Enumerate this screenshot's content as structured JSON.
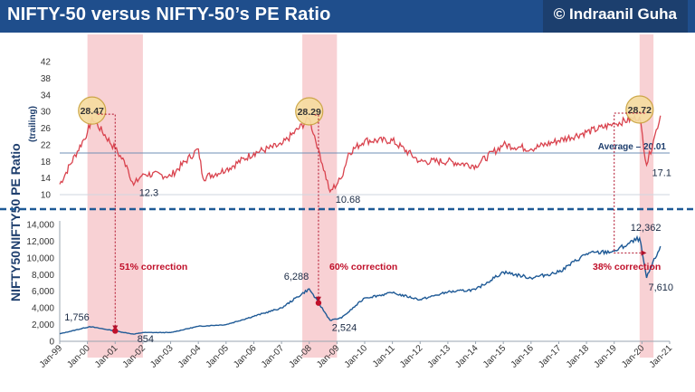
{
  "header": {
    "title": "NIFTY-50 versus NIFTY-50’s PE Ratio",
    "credit": "© Indraanil Guha"
  },
  "chart_data": [
    {
      "type": "line",
      "panel": "top",
      "title": "",
      "ylabel": "NIFTY50 PE Ratio",
      "ylabel_sub": "(trailing)",
      "ylim": [
        10,
        42
      ],
      "yticks": [
        "10",
        "14",
        "18",
        "22",
        "26",
        "30",
        "34",
        "38",
        "42"
      ],
      "xlim": [
        "Jan-99",
        "Jan-21"
      ],
      "series": [
        {
          "color": "#d9434e",
          "x": [
            "Jan-99",
            "Jan-00",
            "Mar-00",
            "Jan-01",
            "Jun-01",
            "Sep-01",
            "Jan-02",
            "Jan-03",
            "Jan-04",
            "Mar-04",
            "Jan-05",
            "Jan-06",
            "Jan-07",
            "Jan-08",
            "May-08",
            "Oct-08",
            "Mar-09",
            "Jun-09",
            "Jan-10",
            "Jan-11",
            "Jan-12",
            "Jan-13",
            "Jan-14",
            "Jan-15",
            "Jan-16",
            "Jan-17",
            "Jan-18",
            "Jan-19",
            "Dec-19",
            "Mar-20",
            "Jun-20",
            "Sep-20"
          ],
          "values": [
            12.5,
            25,
            28.47,
            21,
            17,
            12.3,
            15,
            14.5,
            21,
            14,
            16,
            20,
            22,
            28.29,
            21,
            10.68,
            14,
            20,
            23,
            23,
            18,
            18,
            17,
            22,
            21,
            23,
            25,
            27,
            28.72,
            17.1,
            23,
            29
          ]
        }
      ],
      "reference_line": {
        "value": 20.01,
        "label": "Average – 20.01"
      },
      "annotations": [
        {
          "text": "28.47",
          "x": "Mar-00",
          "y": 28.47,
          "kind": "peak"
        },
        {
          "text": "28.29",
          "x": "Jan-08",
          "y": 28.29,
          "kind": "peak"
        },
        {
          "text": "28.72",
          "x": "Dec-19",
          "y": 28.72,
          "kind": "peak"
        },
        {
          "text": "12.3",
          "x": "Sep-01",
          "y": 12.3,
          "kind": "trough"
        },
        {
          "text": "10.68",
          "x": "Oct-08",
          "y": 10.68,
          "kind": "trough"
        },
        {
          "text": "17.1",
          "x": "Mar-20",
          "y": 17.1,
          "kind": "trough"
        }
      ]
    },
    {
      "type": "line",
      "panel": "bottom",
      "title": "",
      "ylabel": "NIFTY50",
      "ylim": [
        0,
        14000
      ],
      "yticks": [
        "0",
        "2,000",
        "4,000",
        "6,000",
        "8,000",
        "10,000",
        "12,000",
        "14,000"
      ],
      "categories": [
        "Jan-99",
        "Jan-00",
        "Jan-01",
        "Jan-02",
        "Jan-03",
        "Jan-04",
        "Jan-05",
        "Jan-06",
        "Jan-07",
        "Jan-08",
        "Jan-09",
        "Jan-10",
        "Jan-11",
        "Jan-12",
        "Jan-13",
        "Jan-14",
        "Jan-15",
        "Jan-16",
        "Jan-17",
        "Jan-18",
        "Jan-19",
        "Jan-20",
        "Jan-21"
      ],
      "series": [
        {
          "color": "#1f5a96",
          "x": [
            "Jan-99",
            "Feb-00",
            "Jan-01",
            "Sep-01",
            "Jan-02",
            "Jan-03",
            "Jan-04",
            "Jan-05",
            "Jan-06",
            "Jan-07",
            "Jan-08",
            "Oct-08",
            "Mar-09",
            "Jan-10",
            "Jan-11",
            "Jan-12",
            "Jan-13",
            "Jan-14",
            "Jan-15",
            "Jan-16",
            "Jan-17",
            "Jan-18",
            "Jan-19",
            "Dec-19",
            "Mar-20",
            "Sep-20"
          ],
          "values": [
            900,
            1756,
            1250,
            854,
            1050,
            1050,
            1800,
            2000,
            3000,
            4000,
            6288,
            2524,
            2800,
            5200,
            5800,
            5000,
            5900,
            6200,
            8300,
            7600,
            8300,
            10500,
            10800,
            12362,
            7610,
            11400
          ]
        }
      ],
      "annotations": [
        {
          "text": "1,756",
          "x": "Feb-00",
          "y": 1756
        },
        {
          "text": "854",
          "x": "Sep-01",
          "y": 854
        },
        {
          "text": "6,288",
          "x": "Jan-08",
          "y": 6288
        },
        {
          "text": "2,524",
          "x": "Oct-08",
          "y": 2524
        },
        {
          "text": "12,362",
          "x": "Dec-19",
          "y": 12362
        },
        {
          "text": "7,610",
          "x": "Mar-20",
          "y": 7610
        }
      ],
      "corrections": [
        {
          "text": "51% correction"
        },
        {
          "text": "60% correction"
        },
        {
          "text": "38% correction"
        }
      ]
    }
  ],
  "colors": {
    "banner": "#1f4e8c",
    "pe_line": "#d9434e",
    "nifty_line": "#1f5a96",
    "shade": "#f7c9cd",
    "correction_text": "#c0102a",
    "divider": "#1f5a96"
  }
}
